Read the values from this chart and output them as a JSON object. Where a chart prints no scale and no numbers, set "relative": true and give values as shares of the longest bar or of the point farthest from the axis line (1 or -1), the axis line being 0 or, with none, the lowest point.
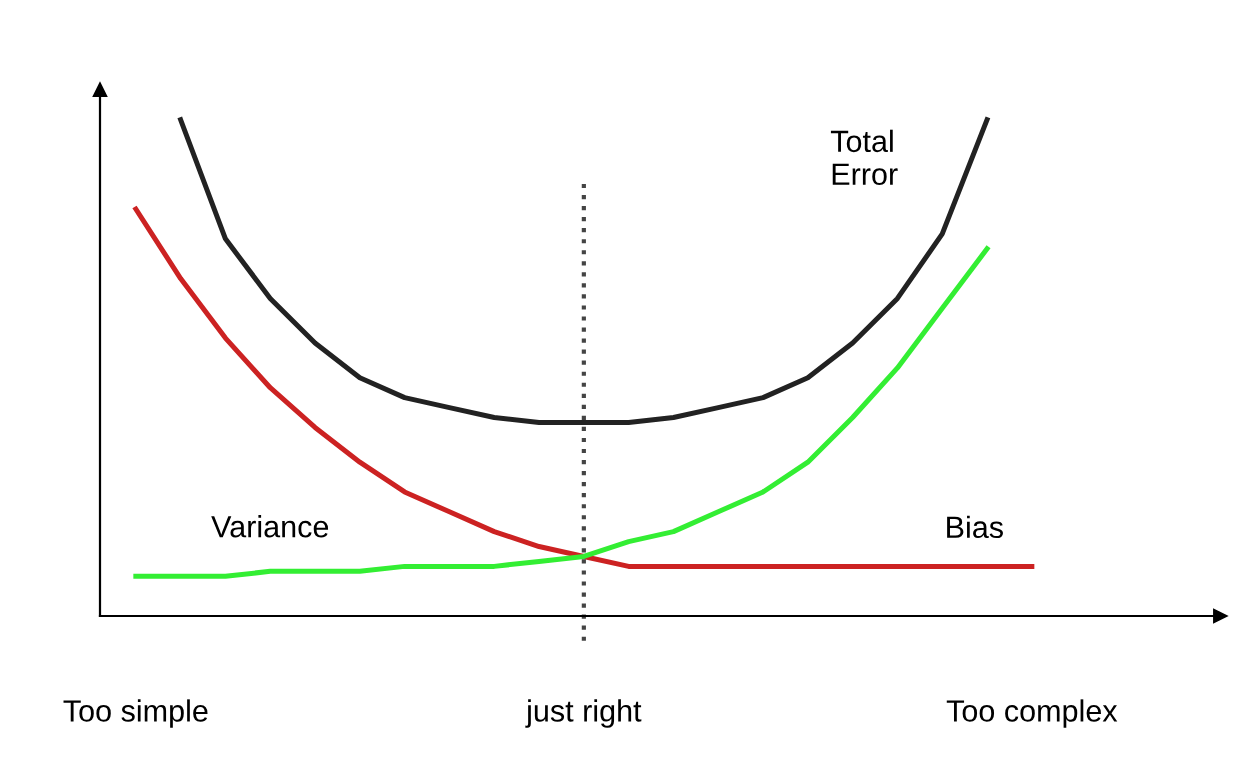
{
  "chart_data": {
    "type": "line",
    "relative": true,
    "categories": [
      "Too simple",
      null,
      null,
      null,
      null,
      null,
      null,
      null,
      null,
      null,
      "just right",
      null,
      null,
      null,
      null,
      null,
      null,
      null,
      null,
      null,
      "Too complex"
    ],
    "series": [
      {
        "name": "Total\nError",
        "color": "#222222",
        "values": [
          null,
          1.0,
          0.76,
          0.64,
          0.55,
          0.48,
          0.44,
          0.42,
          0.4,
          0.39,
          0.39,
          0.39,
          0.4,
          0.42,
          0.44,
          0.48,
          0.55,
          0.64,
          0.77,
          1.0,
          null
        ]
      },
      {
        "name": "Bias",
        "color": "#cc2222",
        "values": [
          0.82,
          0.68,
          0.56,
          0.46,
          0.38,
          0.31,
          0.25,
          0.21,
          0.17,
          0.14,
          0.12,
          0.1,
          0.1,
          0.1,
          0.1,
          0.1,
          0.1,
          0.1,
          0.1,
          0.1,
          0.1
        ]
      },
      {
        "name": "Variance",
        "color": "#33ee33",
        "values": [
          0.08,
          0.08,
          0.08,
          0.09,
          0.09,
          0.09,
          0.1,
          0.1,
          0.1,
          0.11,
          0.12,
          0.15,
          0.17,
          0.21,
          0.25,
          0.31,
          0.4,
          0.5,
          0.62,
          0.74,
          null
        ]
      }
    ],
    "ref_lines": [
      {
        "axis": "x",
        "value": "just right",
        "color": "#444444",
        "line_style": "dotted"
      }
    ],
    "grid": false,
    "legend": false,
    "marker": "none",
    "line_style": "solid"
  }
}
